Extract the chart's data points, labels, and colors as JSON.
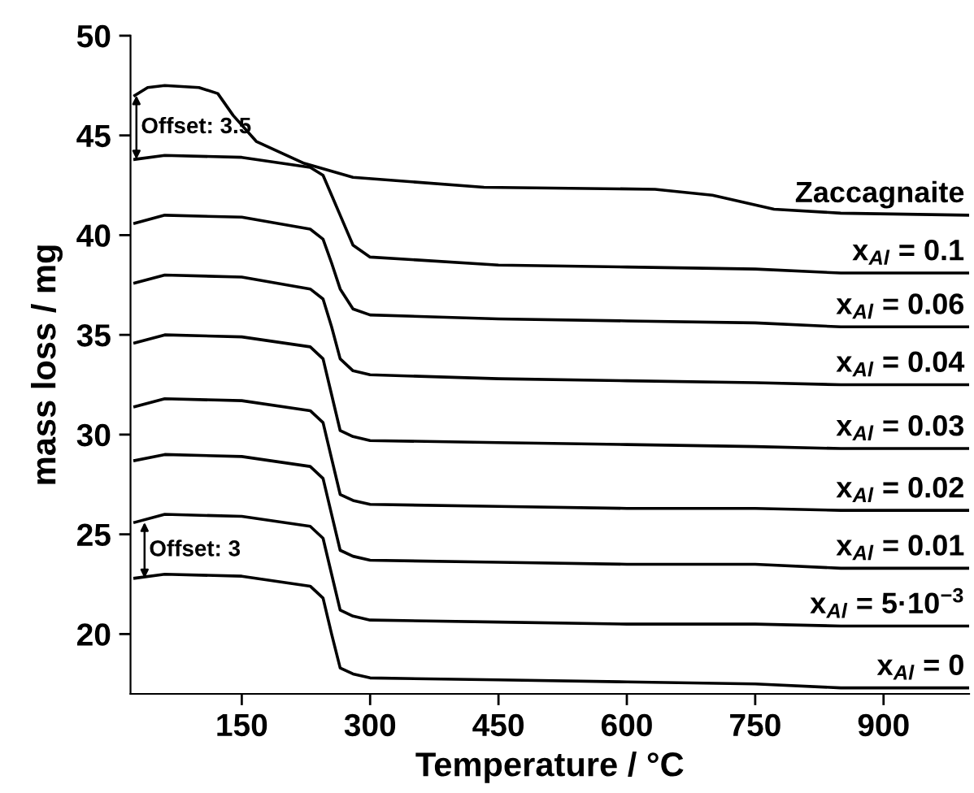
{
  "chart_data": {
    "type": "line",
    "xlabel": "Temperature / °C",
    "ylabel": "mass loss / mg",
    "x": [
      25,
      60,
      150,
      230,
      245,
      255,
      265,
      280,
      300,
      450,
      600,
      750,
      850,
      1000
    ],
    "xlim": [
      20,
      1000
    ],
    "xticks": [
      150,
      300,
      450,
      600,
      750,
      900
    ],
    "ylim": [
      17,
      50
    ],
    "yticks": [
      20,
      25,
      30,
      35,
      40,
      45,
      50
    ],
    "grid": false,
    "legend": false,
    "marker": "none",
    "line_style": "solid",
    "series": [
      {
        "name": "Zaccagnaite",
        "color": "#000000",
        "x": [
          25,
          40,
          60,
          100,
          122,
          140,
          167,
          223,
          280,
          433,
          633,
          700,
          772,
          850,
          1000
        ],
        "values": [
          47.0,
          47.4,
          47.5,
          47.4,
          47.1,
          46.0,
          44.7,
          43.6,
          42.9,
          42.4,
          42.3,
          42.0,
          41.3,
          41.1,
          41.0
        ]
      },
      {
        "name": "x$_{Al}$ = 0.1",
        "color": "#000000",
        "values": [
          43.8,
          44.0,
          43.9,
          43.4,
          43.0,
          42.0,
          41.0,
          39.5,
          38.9,
          38.5,
          38.4,
          38.3,
          38.1,
          38.1
        ]
      },
      {
        "name": "x$_{Al}$ = 0.06",
        "color": "#000000",
        "values": [
          40.6,
          41.0,
          40.9,
          40.3,
          39.8,
          38.6,
          37.3,
          36.3,
          36.0,
          35.8,
          35.7,
          35.6,
          35.4,
          35.4
        ]
      },
      {
        "name": "x$_{Al}$ = 0.04",
        "color": "#000000",
        "values": [
          37.6,
          38.0,
          37.9,
          37.3,
          36.8,
          35.4,
          33.8,
          33.2,
          33.0,
          32.8,
          32.7,
          32.6,
          32.5,
          32.5
        ]
      },
      {
        "name": "x$_{Al}$ = 0.03",
        "color": "#000000",
        "values": [
          34.6,
          35.0,
          34.9,
          34.4,
          33.8,
          32.0,
          30.2,
          29.9,
          29.7,
          29.6,
          29.5,
          29.4,
          29.3,
          29.3
        ]
      },
      {
        "name": "x$_{Al}$ = 0.02",
        "color": "#000000",
        "values": [
          31.4,
          31.8,
          31.7,
          31.2,
          30.6,
          28.8,
          27.0,
          26.7,
          26.5,
          26.4,
          26.3,
          26.3,
          26.2,
          26.2
        ]
      },
      {
        "name": "x$_{Al}$ = 0.01",
        "color": "#000000",
        "values": [
          28.7,
          29.0,
          28.9,
          28.4,
          27.8,
          26.0,
          24.2,
          23.9,
          23.7,
          23.6,
          23.5,
          23.5,
          23.3,
          23.3
        ]
      },
      {
        "name": "x$_{Al}$ = 5·10$^{−3}$",
        "color": "#000000",
        "values": [
          25.6,
          26.0,
          25.9,
          25.4,
          24.8,
          23.0,
          21.2,
          20.9,
          20.7,
          20.6,
          20.5,
          20.5,
          20.4,
          20.4
        ]
      },
      {
        "name": "x$_{Al}$ = 0",
        "color": "#000000",
        "values": [
          22.8,
          23.0,
          22.9,
          22.4,
          21.8,
          20.0,
          18.3,
          18.0,
          17.8,
          17.7,
          17.6,
          17.5,
          17.3,
          17.3
        ]
      }
    ],
    "annotations": [
      "Offset: 3.5",
      "Offset: 3"
    ]
  }
}
